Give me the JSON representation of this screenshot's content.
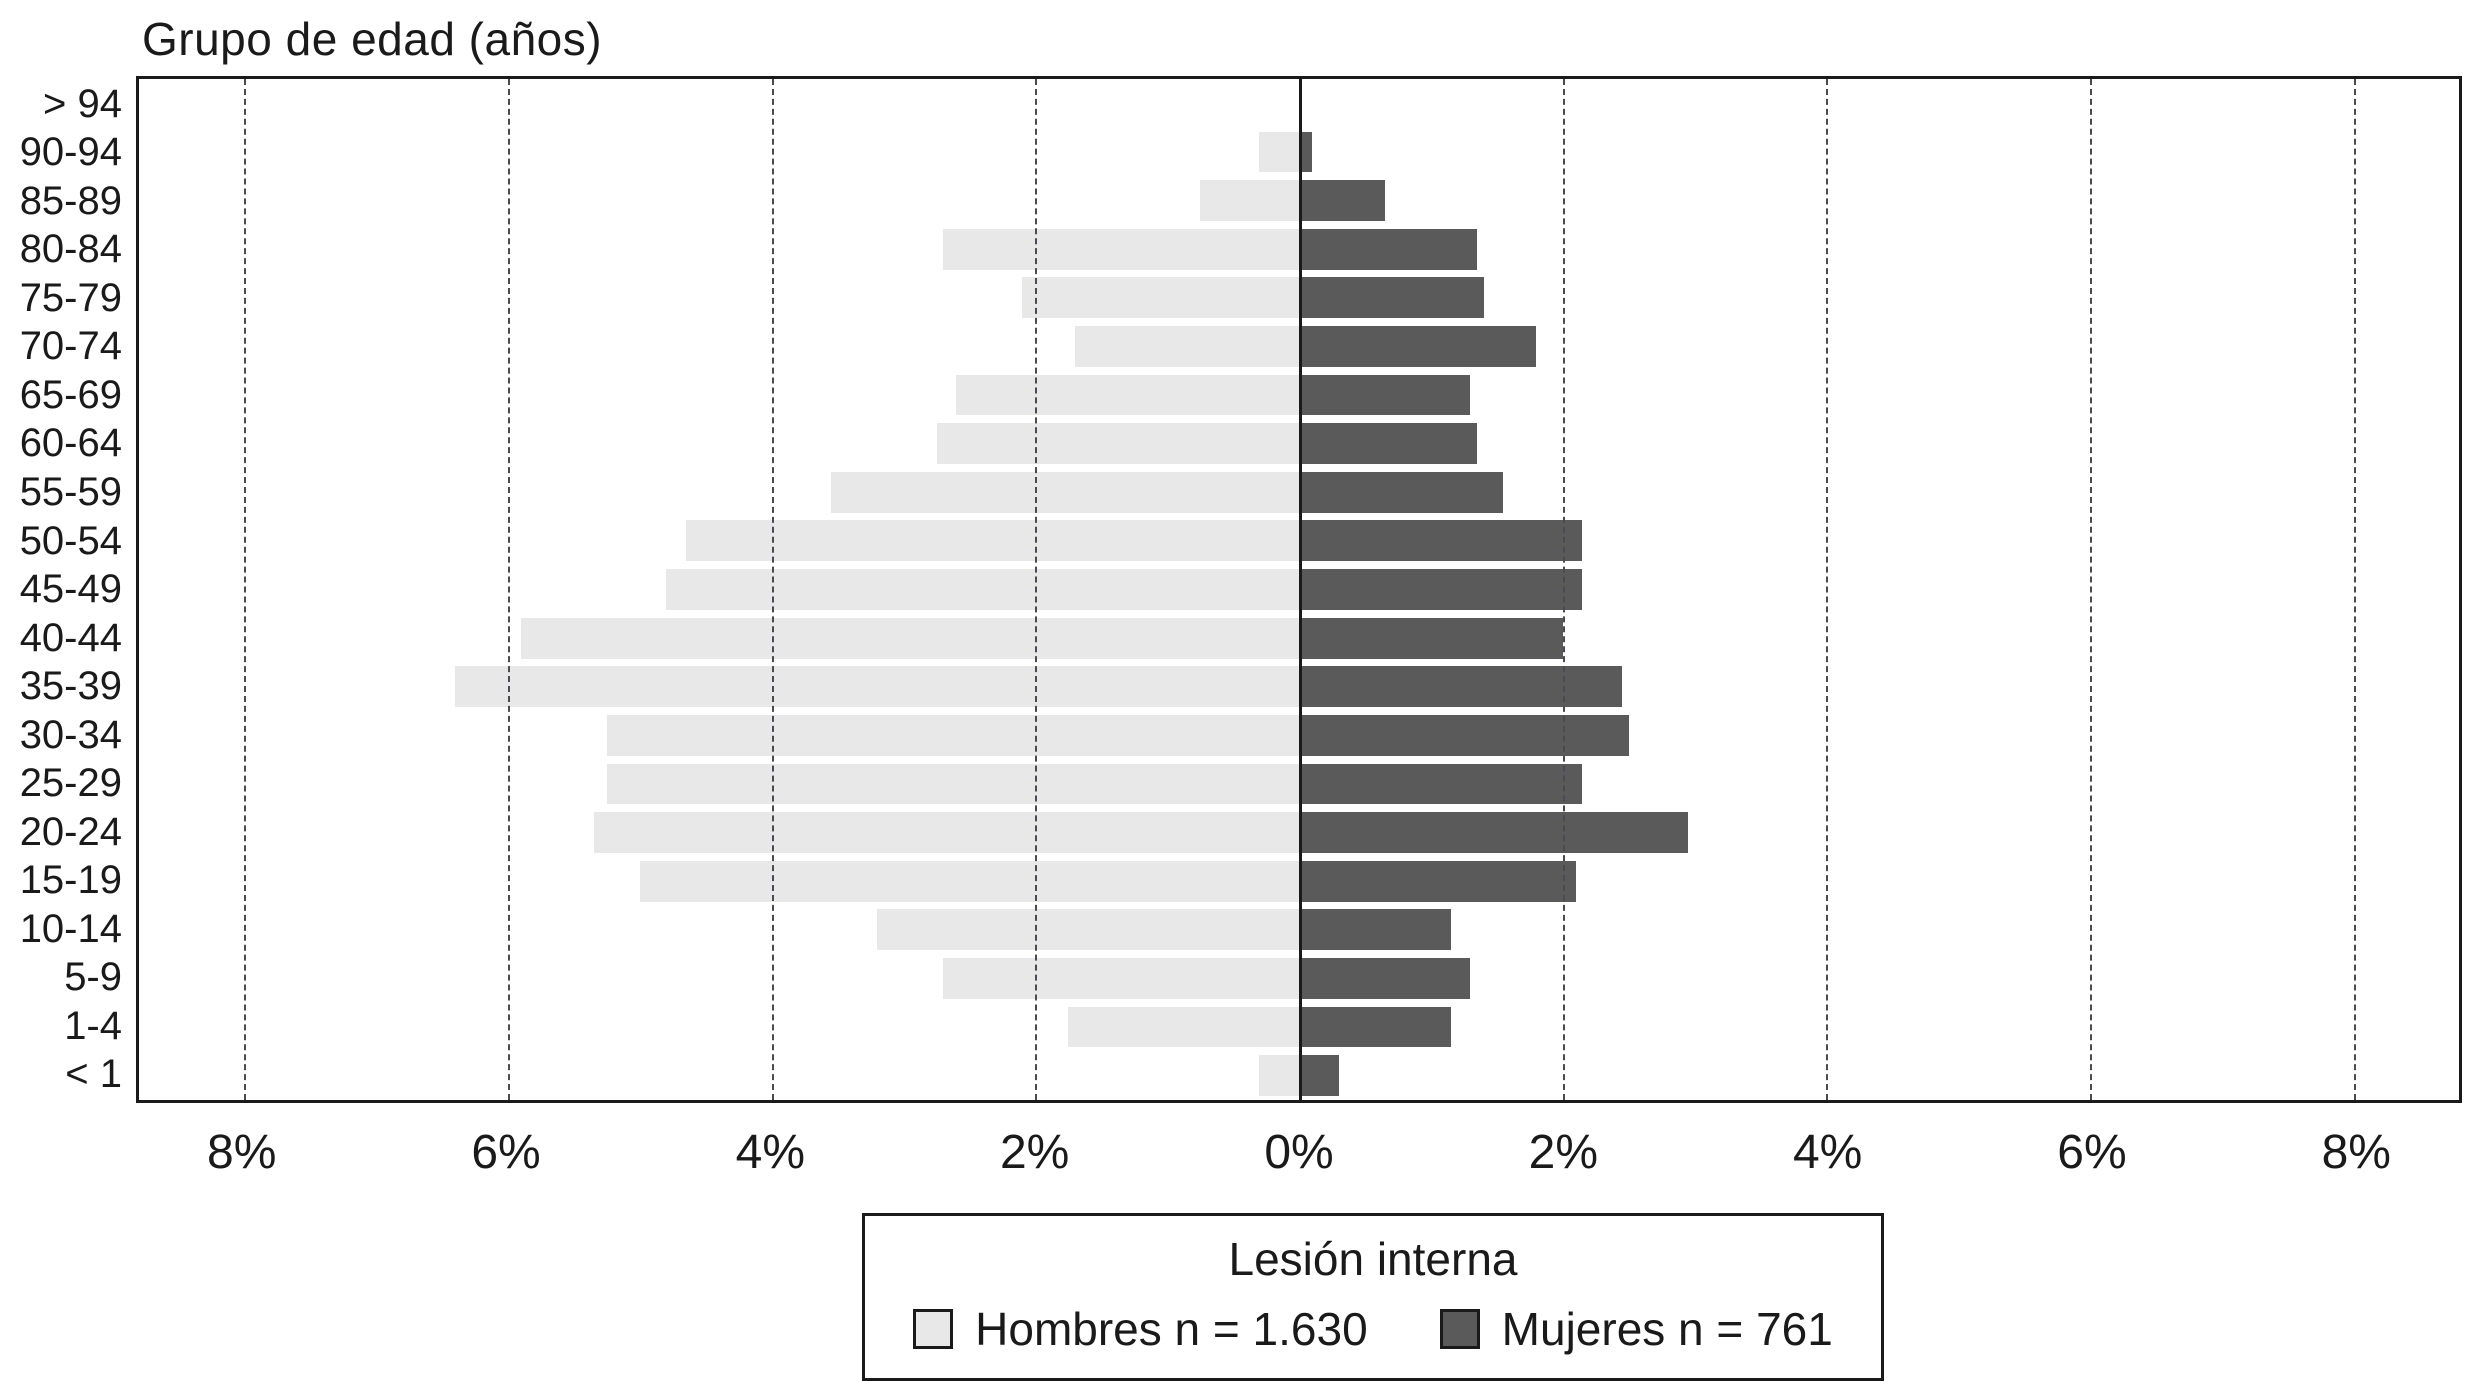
{
  "title": "Grupo de edad (años)",
  "chart_data": {
    "type": "bar",
    "subtype": "population-pyramid",
    "orientation": "horizontal",
    "grid": "dashed-vertical",
    "xlim": [
      -8.8,
      8.8
    ],
    "categories": [
      "> 94",
      "90-94",
      "85-89",
      "80-84",
      "75-79",
      "70-74",
      "65-69",
      "60-64",
      "55-59",
      "50-54",
      "45-49",
      "40-44",
      "35-39",
      "30-34",
      "25-29",
      "20-24",
      "15-19",
      "10-14",
      "5-9",
      "1-4",
      "< 1"
    ],
    "series": [
      {
        "name": "Hombres",
        "label": "Hombres n = 1.630",
        "side": "left",
        "color": "#e8e8e8",
        "values": [
          0,
          0.3,
          0.75,
          2.7,
          2.1,
          1.7,
          2.6,
          2.75,
          3.55,
          4.65,
          4.8,
          5.9,
          6.4,
          5.25,
          5.25,
          5.35,
          5.0,
          3.2,
          2.7,
          1.75,
          0.3
        ]
      },
      {
        "name": "Mujeres",
        "label": "Mujeres n = 761",
        "side": "right",
        "color": "#5a5a5a",
        "values": [
          0,
          0.1,
          0.65,
          1.35,
          1.4,
          1.8,
          1.3,
          1.35,
          1.55,
          2.15,
          2.15,
          2.0,
          2.45,
          2.5,
          2.15,
          2.95,
          2.1,
          1.15,
          1.3,
          1.15,
          0.3
        ]
      }
    ],
    "x_ticks": [
      {
        "value": -8,
        "label": "8%"
      },
      {
        "value": -6,
        "label": "6%"
      },
      {
        "value": -4,
        "label": "4%"
      },
      {
        "value": -2,
        "label": "2%"
      },
      {
        "value": 0,
        "label": "0%"
      },
      {
        "value": 2,
        "label": "2%"
      },
      {
        "value": 4,
        "label": "4%"
      },
      {
        "value": 6,
        "label": "6%"
      },
      {
        "value": 8,
        "label": "8%"
      }
    ],
    "legend": {
      "title": "Lesión interna",
      "position": "bottom"
    }
  }
}
